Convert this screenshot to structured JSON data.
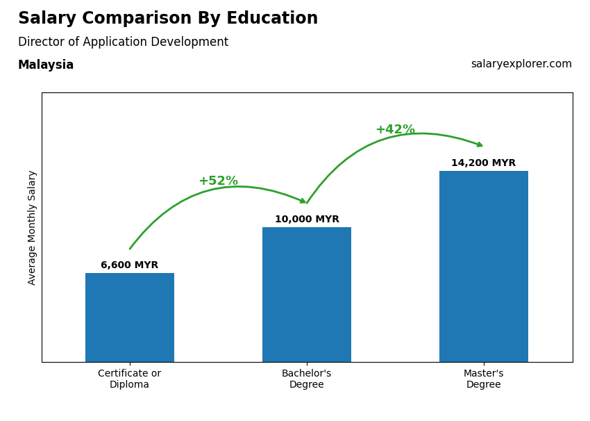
{
  "chart_data": {
    "type": "bar",
    "title": "Salary Comparison By Education",
    "subtitle": "Director of Application Development",
    "ylabel": "Average Monthly Salary",
    "categories": [
      "Certificate or\nDiploma",
      "Bachelor's\nDegree",
      "Master's\nDegree"
    ],
    "values": [
      6600,
      10000,
      14200
    ],
    "value_labels": [
      "6,600 MYR",
      "10,000 MYR",
      "14,200 MYR"
    ],
    "data_labels": true,
    "ylim": [
      0,
      20000
    ],
    "tick_labels": "x",
    "grid": false,
    "annotations": [
      "Malaysia",
      "salaryexplorer.com",
      {
        "text": "+52%",
        "from": "Certificate or\nDiploma",
        "to": "Bachelor's\nDegree"
      },
      {
        "text": "+42%",
        "from": "Bachelor's\nDegree",
        "to": "Master's\nDegree"
      }
    ]
  }
}
